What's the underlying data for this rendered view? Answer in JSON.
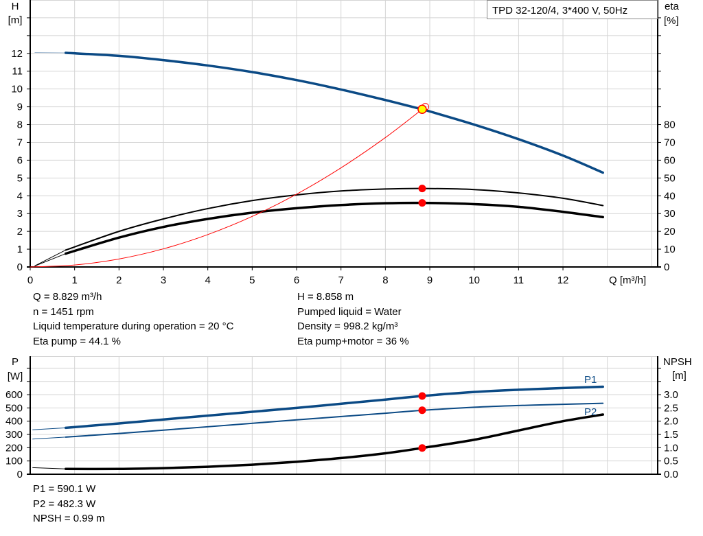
{
  "chart_data": [
    {
      "type": "line",
      "title": "TPD 32-120/4, 3*400 V, 50Hz",
      "xlabel": "Q [m³/h]",
      "ylabel": "H\n[m]",
      "ylabel_line1": "H",
      "ylabel_line2": "[m]",
      "y2label_line1": "eta",
      "y2label_line2": "[%]",
      "xlim": [
        0,
        14.1
      ],
      "ylim": [
        0,
        15
      ],
      "y2lim": [
        0,
        150
      ],
      "grid": true,
      "x_ticks": [
        "0",
        "1",
        "2",
        "3",
        "4",
        "5",
        "6",
        "7",
        "8",
        "9",
        "10",
        "11",
        "12"
      ],
      "y_ticks": [
        "0",
        "1",
        "2",
        "3",
        "4",
        "5",
        "6",
        "7",
        "8",
        "9",
        "10",
        "11",
        "12"
      ],
      "y2_ticks": [
        "0",
        "10",
        "20",
        "30",
        "40",
        "50",
        "60",
        "70",
        "80"
      ],
      "series": [
        {
          "key": "H",
          "axis": "left",
          "color": "#0b4a85",
          "x": [
            0.8,
            2,
            3,
            4,
            5,
            6,
            7,
            8,
            8.829,
            9,
            10,
            11,
            12,
            12.9
          ],
          "y": [
            12.03,
            11.86,
            11.62,
            11.32,
            10.95,
            10.5,
            9.97,
            9.38,
            8.858,
            8.74,
            8.0,
            7.18,
            6.26,
            5.3
          ],
          "lead_x": [
            0.1,
            0.8
          ],
          "lead_y": [
            12.05,
            12.03
          ]
        },
        {
          "key": "eta_pump",
          "axis": "right",
          "color": "#000000",
          "x": [
            0.8,
            2,
            3,
            4,
            5,
            6,
            7,
            8,
            8.829,
            10,
            11,
            12,
            12.9
          ],
          "y": [
            9.5,
            20,
            27,
            32.8,
            37.3,
            40.5,
            42.7,
            43.8,
            44.1,
            43.5,
            41.6,
            38.6,
            34.5
          ],
          "lead_x": [
            0.1,
            0.8
          ],
          "lead_y": [
            0.6,
            9.5
          ]
        },
        {
          "key": "eta_pump_motor",
          "axis": "right",
          "color": "#000000",
          "x": [
            0.8,
            2,
            3,
            4,
            5,
            6,
            7,
            8,
            8.829,
            10,
            11,
            12,
            12.9
          ],
          "y": [
            7.5,
            16.5,
            22.5,
            27,
            30.5,
            33,
            34.8,
            35.8,
            36,
            35.3,
            33.8,
            31,
            28
          ],
          "lead_x": [
            0.1,
            0.8
          ],
          "lead_y": [
            0.5,
            7.5
          ]
        },
        {
          "key": "system_curve",
          "axis": "left",
          "color": "#ff0000",
          "x": [
            0,
            1,
            2,
            3,
            4,
            5,
            6,
            7,
            8,
            8.9
          ],
          "y": [
            0,
            0.11,
            0.45,
            1.02,
            1.82,
            2.84,
            4.09,
            5.57,
            7.27,
            9.0
          ]
        }
      ],
      "duty_point": {
        "Q": 8.829,
        "H": 8.858,
        "eta_pump": 44.1,
        "eta_pump_motor": 36
      }
    },
    {
      "type": "line",
      "ylabel_line1": "P",
      "ylabel_line2": "[W]",
      "y2label_line1": "NPSH",
      "y2label_line2": "[m]",
      "xlim": [
        0,
        14.1
      ],
      "ylim": [
        0,
        890
      ],
      "y2lim": [
        0,
        4.45
      ],
      "grid": true,
      "y_ticks": [
        "0",
        "100",
        "200",
        "300",
        "400",
        "500",
        "600"
      ],
      "y2_ticks": [
        "0.0",
        "0.5",
        "1.0",
        "1.5",
        "2.0",
        "2.5",
        "3.0"
      ],
      "series": [
        {
          "key": "P1",
          "name": "P1",
          "axis": "left",
          "color": "#0b4a85",
          "x": [
            0.8,
            2,
            4,
            6,
            8,
            8.829,
            10,
            11,
            12,
            12.9
          ],
          "y": [
            350,
            383,
            442,
            500,
            563,
            590,
            620,
            637,
            650,
            660
          ],
          "lead_x": [
            0.05,
            0.8
          ],
          "lead_y": [
            335,
            350
          ]
        },
        {
          "key": "P2",
          "name": "P2",
          "axis": "left",
          "color": "#0b4a85",
          "x": [
            0.8,
            2,
            4,
            6,
            8,
            8.829,
            10,
            11,
            12,
            12.9
          ],
          "y": [
            280,
            307,
            358,
            410,
            460,
            482,
            505,
            518,
            527,
            535
          ],
          "lead_x": [
            0.05,
            0.8
          ],
          "lead_y": [
            265,
            280
          ]
        },
        {
          "key": "NPSH",
          "axis": "right",
          "color": "#000000",
          "x": [
            0.8,
            2,
            3,
            4,
            5,
            6,
            7,
            8,
            8.829,
            10,
            11,
            12,
            12.9
          ],
          "y": [
            0.2,
            0.2,
            0.23,
            0.28,
            0.36,
            0.47,
            0.61,
            0.79,
            0.99,
            1.3,
            1.65,
            2.0,
            2.25
          ],
          "lead_x": [
            0.05,
            0.8
          ],
          "lead_y": [
            0.25,
            0.2
          ]
        }
      ],
      "duty_point": {
        "P1": 590.1,
        "P2": 482.3,
        "NPSH": 0.99
      }
    }
  ],
  "info_top": {
    "left": [
      "Q = 8.829 m³/h",
      "n = 1451 rpm",
      "Liquid temperature during operation = 20 °C",
      "Eta pump = 44.1 %"
    ],
    "right": [
      "H = 8.858 m",
      "Pumped liquid = Water",
      "Density = 998.2 kg/m³",
      "Eta pump+motor = 36 %"
    ]
  },
  "info_bottom": [
    "P1 = 590.1 W",
    "P2 = 482.3 W",
    "NPSH = 0.99 m"
  ],
  "colors": {
    "curve_blue": "#0b4a85",
    "marker_red": "#ff0000",
    "duty_fill": "#ffff00",
    "grid": "#d4d4d4"
  }
}
